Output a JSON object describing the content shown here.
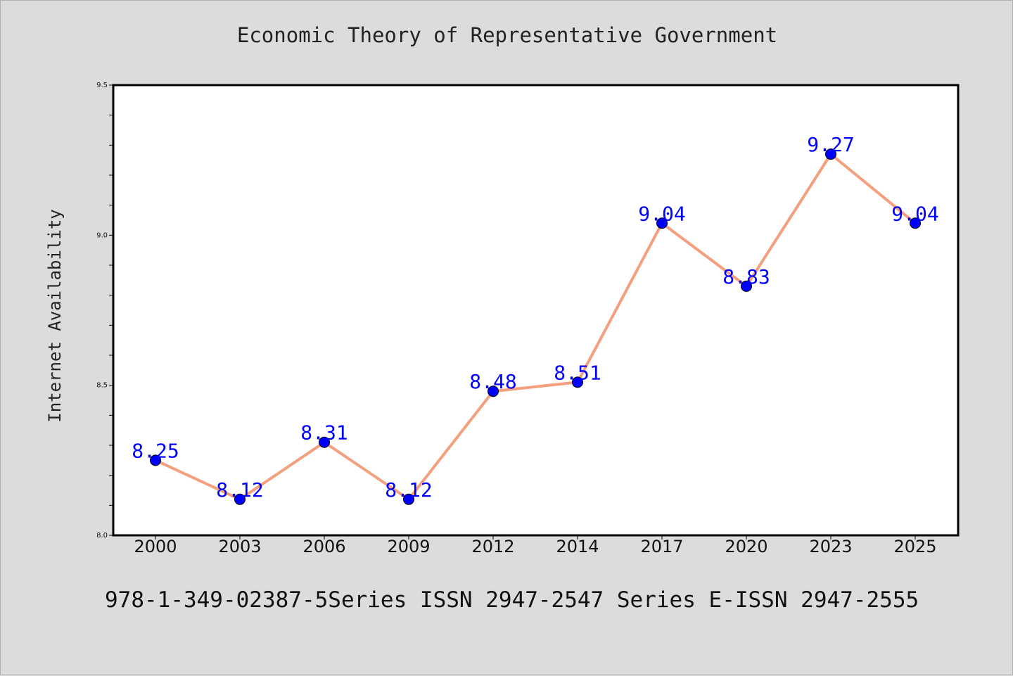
{
  "chart_data": {
    "type": "line",
    "title": "Economic Theory of Representative Government",
    "xlabel": "",
    "ylabel": "Internet Availability",
    "categories": [
      "2000",
      "2003",
      "2006",
      "2009",
      "2012",
      "2014",
      "2017",
      "2020",
      "2023",
      "2025"
    ],
    "series": [
      {
        "values": [
          8.25,
          8.12,
          8.31,
          8.12,
          8.48,
          8.51,
          9.04,
          8.83,
          9.27,
          9.04
        ],
        "labels": [
          "8.25",
          "8.12",
          "8.31",
          "8.12",
          "8.48",
          "8.51",
          "9.04",
          "8.83",
          "9.27",
          "9.04"
        ],
        "line_color": "#f4a07e",
        "marker_color": "#0000ff"
      }
    ],
    "ylim": [
      8.0,
      9.5
    ],
    "yticks": [
      "8.0",
      "8.5",
      "9.0",
      "9.5"
    ],
    "yminor_step": 0.1,
    "grid": false,
    "legend": "none"
  },
  "footer": {
    "text": "978-1-349-02387-5Series ISSN 2947-2547 Series E-ISSN 2947-2555"
  },
  "colors": {
    "background": "#dcdcdc",
    "plot_background": "#ffffff",
    "axis": "#000000"
  }
}
